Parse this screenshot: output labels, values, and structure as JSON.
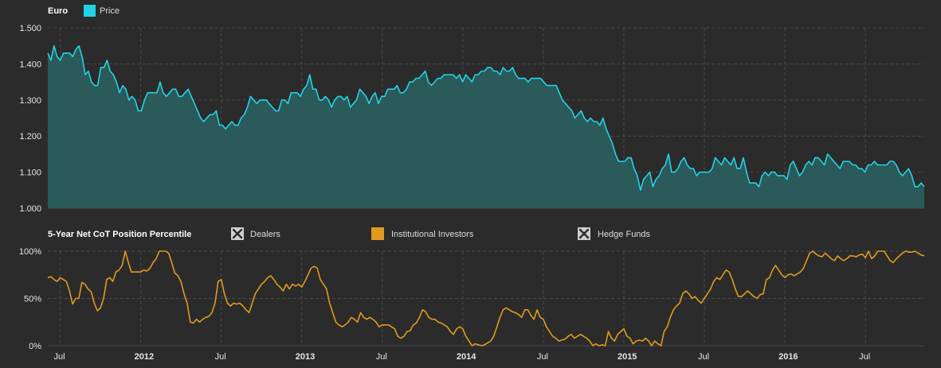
{
  "colors": {
    "background": "#2b2b2b",
    "grid": "#4a4a4a",
    "price_line": "#22d3e6",
    "price_fill": "#2a5a5a",
    "institutional": "#e09a1e",
    "disabled": "#cfcfcf",
    "text": "#e6e6e6"
  },
  "chart_data": [
    {
      "type": "area",
      "title": "Euro",
      "legend": [
        {
          "name": "Price",
          "color": "#22d3e6",
          "icon": "filled-square"
        }
      ],
      "ylim": [
        1.0,
        1.5
      ],
      "yticks": [
        "1.000",
        "1.100",
        "1.200",
        "1.300",
        "1.400",
        "1.500"
      ],
      "grid": true,
      "series": [
        {
          "name": "Price",
          "values": [
            1.43,
            1.41,
            1.45,
            1.42,
            1.41,
            1.43,
            1.43,
            1.43,
            1.42,
            1.44,
            1.45,
            1.42,
            1.37,
            1.38,
            1.35,
            1.34,
            1.34,
            1.39,
            1.39,
            1.41,
            1.38,
            1.37,
            1.35,
            1.32,
            1.34,
            1.33,
            1.3,
            1.31,
            1.3,
            1.27,
            1.27,
            1.3,
            1.32,
            1.32,
            1.32,
            1.32,
            1.35,
            1.32,
            1.31,
            1.32,
            1.33,
            1.33,
            1.31,
            1.31,
            1.32,
            1.33,
            1.31,
            1.29,
            1.27,
            1.25,
            1.24,
            1.25,
            1.26,
            1.26,
            1.27,
            1.23,
            1.23,
            1.22,
            1.23,
            1.24,
            1.23,
            1.23,
            1.25,
            1.26,
            1.28,
            1.31,
            1.3,
            1.29,
            1.3,
            1.3,
            1.3,
            1.29,
            1.28,
            1.27,
            1.27,
            1.3,
            1.3,
            1.29,
            1.32,
            1.32,
            1.32,
            1.31,
            1.33,
            1.34,
            1.37,
            1.33,
            1.33,
            1.3,
            1.3,
            1.31,
            1.3,
            1.28,
            1.3,
            1.31,
            1.31,
            1.3,
            1.31,
            1.28,
            1.29,
            1.3,
            1.33,
            1.32,
            1.31,
            1.29,
            1.31,
            1.32,
            1.29,
            1.31,
            1.31,
            1.33,
            1.33,
            1.33,
            1.34,
            1.32,
            1.32,
            1.33,
            1.35,
            1.35,
            1.36,
            1.36,
            1.37,
            1.38,
            1.35,
            1.34,
            1.35,
            1.36,
            1.36,
            1.37,
            1.37,
            1.37,
            1.37,
            1.36,
            1.37,
            1.35,
            1.37,
            1.36,
            1.35,
            1.37,
            1.37,
            1.38,
            1.38,
            1.39,
            1.39,
            1.38,
            1.38,
            1.37,
            1.39,
            1.38,
            1.38,
            1.39,
            1.37,
            1.36,
            1.36,
            1.36,
            1.35,
            1.36,
            1.36,
            1.36,
            1.36,
            1.35,
            1.34,
            1.34,
            1.34,
            1.34,
            1.32,
            1.3,
            1.29,
            1.28,
            1.27,
            1.25,
            1.26,
            1.27,
            1.25,
            1.24,
            1.25,
            1.24,
            1.24,
            1.23,
            1.25,
            1.22,
            1.2,
            1.18,
            1.15,
            1.13,
            1.13,
            1.13,
            1.14,
            1.14,
            1.11,
            1.09,
            1.05,
            1.08,
            1.09,
            1.1,
            1.06,
            1.08,
            1.09,
            1.11,
            1.12,
            1.15,
            1.1,
            1.1,
            1.11,
            1.13,
            1.14,
            1.12,
            1.11,
            1.11,
            1.09,
            1.1,
            1.1,
            1.1,
            1.1,
            1.11,
            1.14,
            1.13,
            1.12,
            1.14,
            1.13,
            1.12,
            1.14,
            1.11,
            1.11,
            1.14,
            1.1,
            1.07,
            1.07,
            1.07,
            1.06,
            1.09,
            1.1,
            1.09,
            1.1,
            1.1,
            1.09,
            1.09,
            1.09,
            1.08,
            1.12,
            1.13,
            1.11,
            1.09,
            1.1,
            1.12,
            1.13,
            1.12,
            1.14,
            1.14,
            1.13,
            1.12,
            1.15,
            1.14,
            1.13,
            1.12,
            1.11,
            1.13,
            1.13,
            1.13,
            1.12,
            1.12,
            1.11,
            1.11,
            1.1,
            1.12,
            1.12,
            1.13,
            1.12,
            1.12,
            1.12,
            1.12,
            1.13,
            1.13,
            1.12,
            1.1,
            1.09,
            1.1,
            1.11,
            1.09,
            1.06,
            1.06,
            1.07,
            1.06
          ]
        }
      ]
    },
    {
      "type": "line",
      "title": "5-Year Net CoT Position Percentile",
      "legend": [
        {
          "name": "Dealers",
          "state": "disabled",
          "color": "#cfcfcf",
          "icon": "x-box"
        },
        {
          "name": "Institutional Investors",
          "state": "enabled",
          "color": "#e09a1e",
          "icon": "filled-square"
        },
        {
          "name": "Hedge Funds",
          "state": "disabled",
          "color": "#cfcfcf",
          "icon": "x-box"
        }
      ],
      "ylim": [
        0,
        100
      ],
      "yticks": [
        "0%",
        "50%",
        "100%"
      ],
      "grid": true,
      "series": [
        {
          "name": "Institutional Investors",
          "values": [
            72,
            73,
            70,
            68,
            72,
            70,
            68,
            58,
            44,
            50,
            50,
            67,
            65,
            60,
            57,
            45,
            37,
            40,
            50,
            70,
            72,
            68,
            78,
            80,
            85,
            100,
            88,
            78,
            78,
            78,
            78,
            80,
            79,
            82,
            88,
            92,
            100,
            100,
            100,
            98,
            88,
            77,
            74,
            68,
            55,
            45,
            25,
            24,
            28,
            25,
            28,
            30,
            31,
            35,
            45,
            68,
            70,
            55,
            45,
            42,
            45,
            44,
            45,
            42,
            38,
            35,
            45,
            55,
            60,
            65,
            68,
            72,
            74,
            70,
            65,
            62,
            58,
            65,
            60,
            65,
            63,
            65,
            62,
            68,
            75,
            82,
            84,
            82,
            70,
            65,
            60,
            45,
            35,
            25,
            22,
            20,
            22,
            25,
            30,
            28,
            25,
            35,
            30,
            28,
            30,
            28,
            25,
            20,
            22,
            22,
            22,
            20,
            18,
            10,
            8,
            10,
            15,
            16,
            22,
            24,
            30,
            38,
            36,
            30,
            28,
            28,
            25,
            24,
            22,
            20,
            15,
            12,
            18,
            20,
            18,
            10,
            5,
            0,
            2,
            1,
            0,
            1,
            3,
            5,
            10,
            20,
            30,
            38,
            40,
            38,
            36,
            35,
            33,
            30,
            38,
            38,
            32,
            28,
            38,
            30,
            28,
            20,
            15,
            10,
            8,
            5,
            6,
            7,
            10,
            12,
            8,
            10,
            12,
            10,
            8,
            5,
            0,
            2,
            0,
            1,
            0,
            15,
            8,
            5,
            12,
            15,
            18,
            10,
            8,
            2,
            5,
            6,
            5,
            8,
            5,
            0,
            5,
            2,
            0,
            15,
            20,
            30,
            38,
            42,
            45,
            55,
            58,
            55,
            50,
            52,
            48,
            45,
            50,
            55,
            60,
            68,
            72,
            70,
            75,
            80,
            78,
            70,
            60,
            52,
            52,
            55,
            58,
            55,
            52,
            50,
            54,
            55,
            70,
            72,
            80,
            85,
            80,
            75,
            72,
            75,
            76,
            74,
            76,
            78,
            82,
            90,
            98,
            100,
            97,
            95,
            94,
            98,
            95,
            92,
            90,
            95,
            92,
            90,
            92,
            95,
            95,
            94,
            96,
            97,
            93,
            100,
            92,
            95,
            100,
            100,
            100,
            95,
            90,
            88,
            92,
            95,
            98,
            100,
            99,
            99,
            100,
            98,
            96,
            95
          ]
        }
      ],
      "xticks": [
        {
          "label": "Jul",
          "bold": false,
          "index": 4
        },
        {
          "label": "2012",
          "bold": true,
          "index": 30
        },
        {
          "label": "Jul",
          "bold": false,
          "index": 56
        },
        {
          "label": "2013",
          "bold": true,
          "index": 82
        },
        {
          "label": "Jul",
          "bold": false,
          "index": 108
        },
        {
          "label": "2014",
          "bold": true,
          "index": 134
        },
        {
          "label": "Jul",
          "bold": false,
          "index": 160
        },
        {
          "label": "2015",
          "bold": true,
          "index": 186
        },
        {
          "label": "Jul",
          "bold": false,
          "index": 212
        },
        {
          "label": "2016",
          "bold": true,
          "index": 238
        },
        {
          "label": "Jul",
          "bold": false,
          "index": 264
        }
      ]
    }
  ]
}
